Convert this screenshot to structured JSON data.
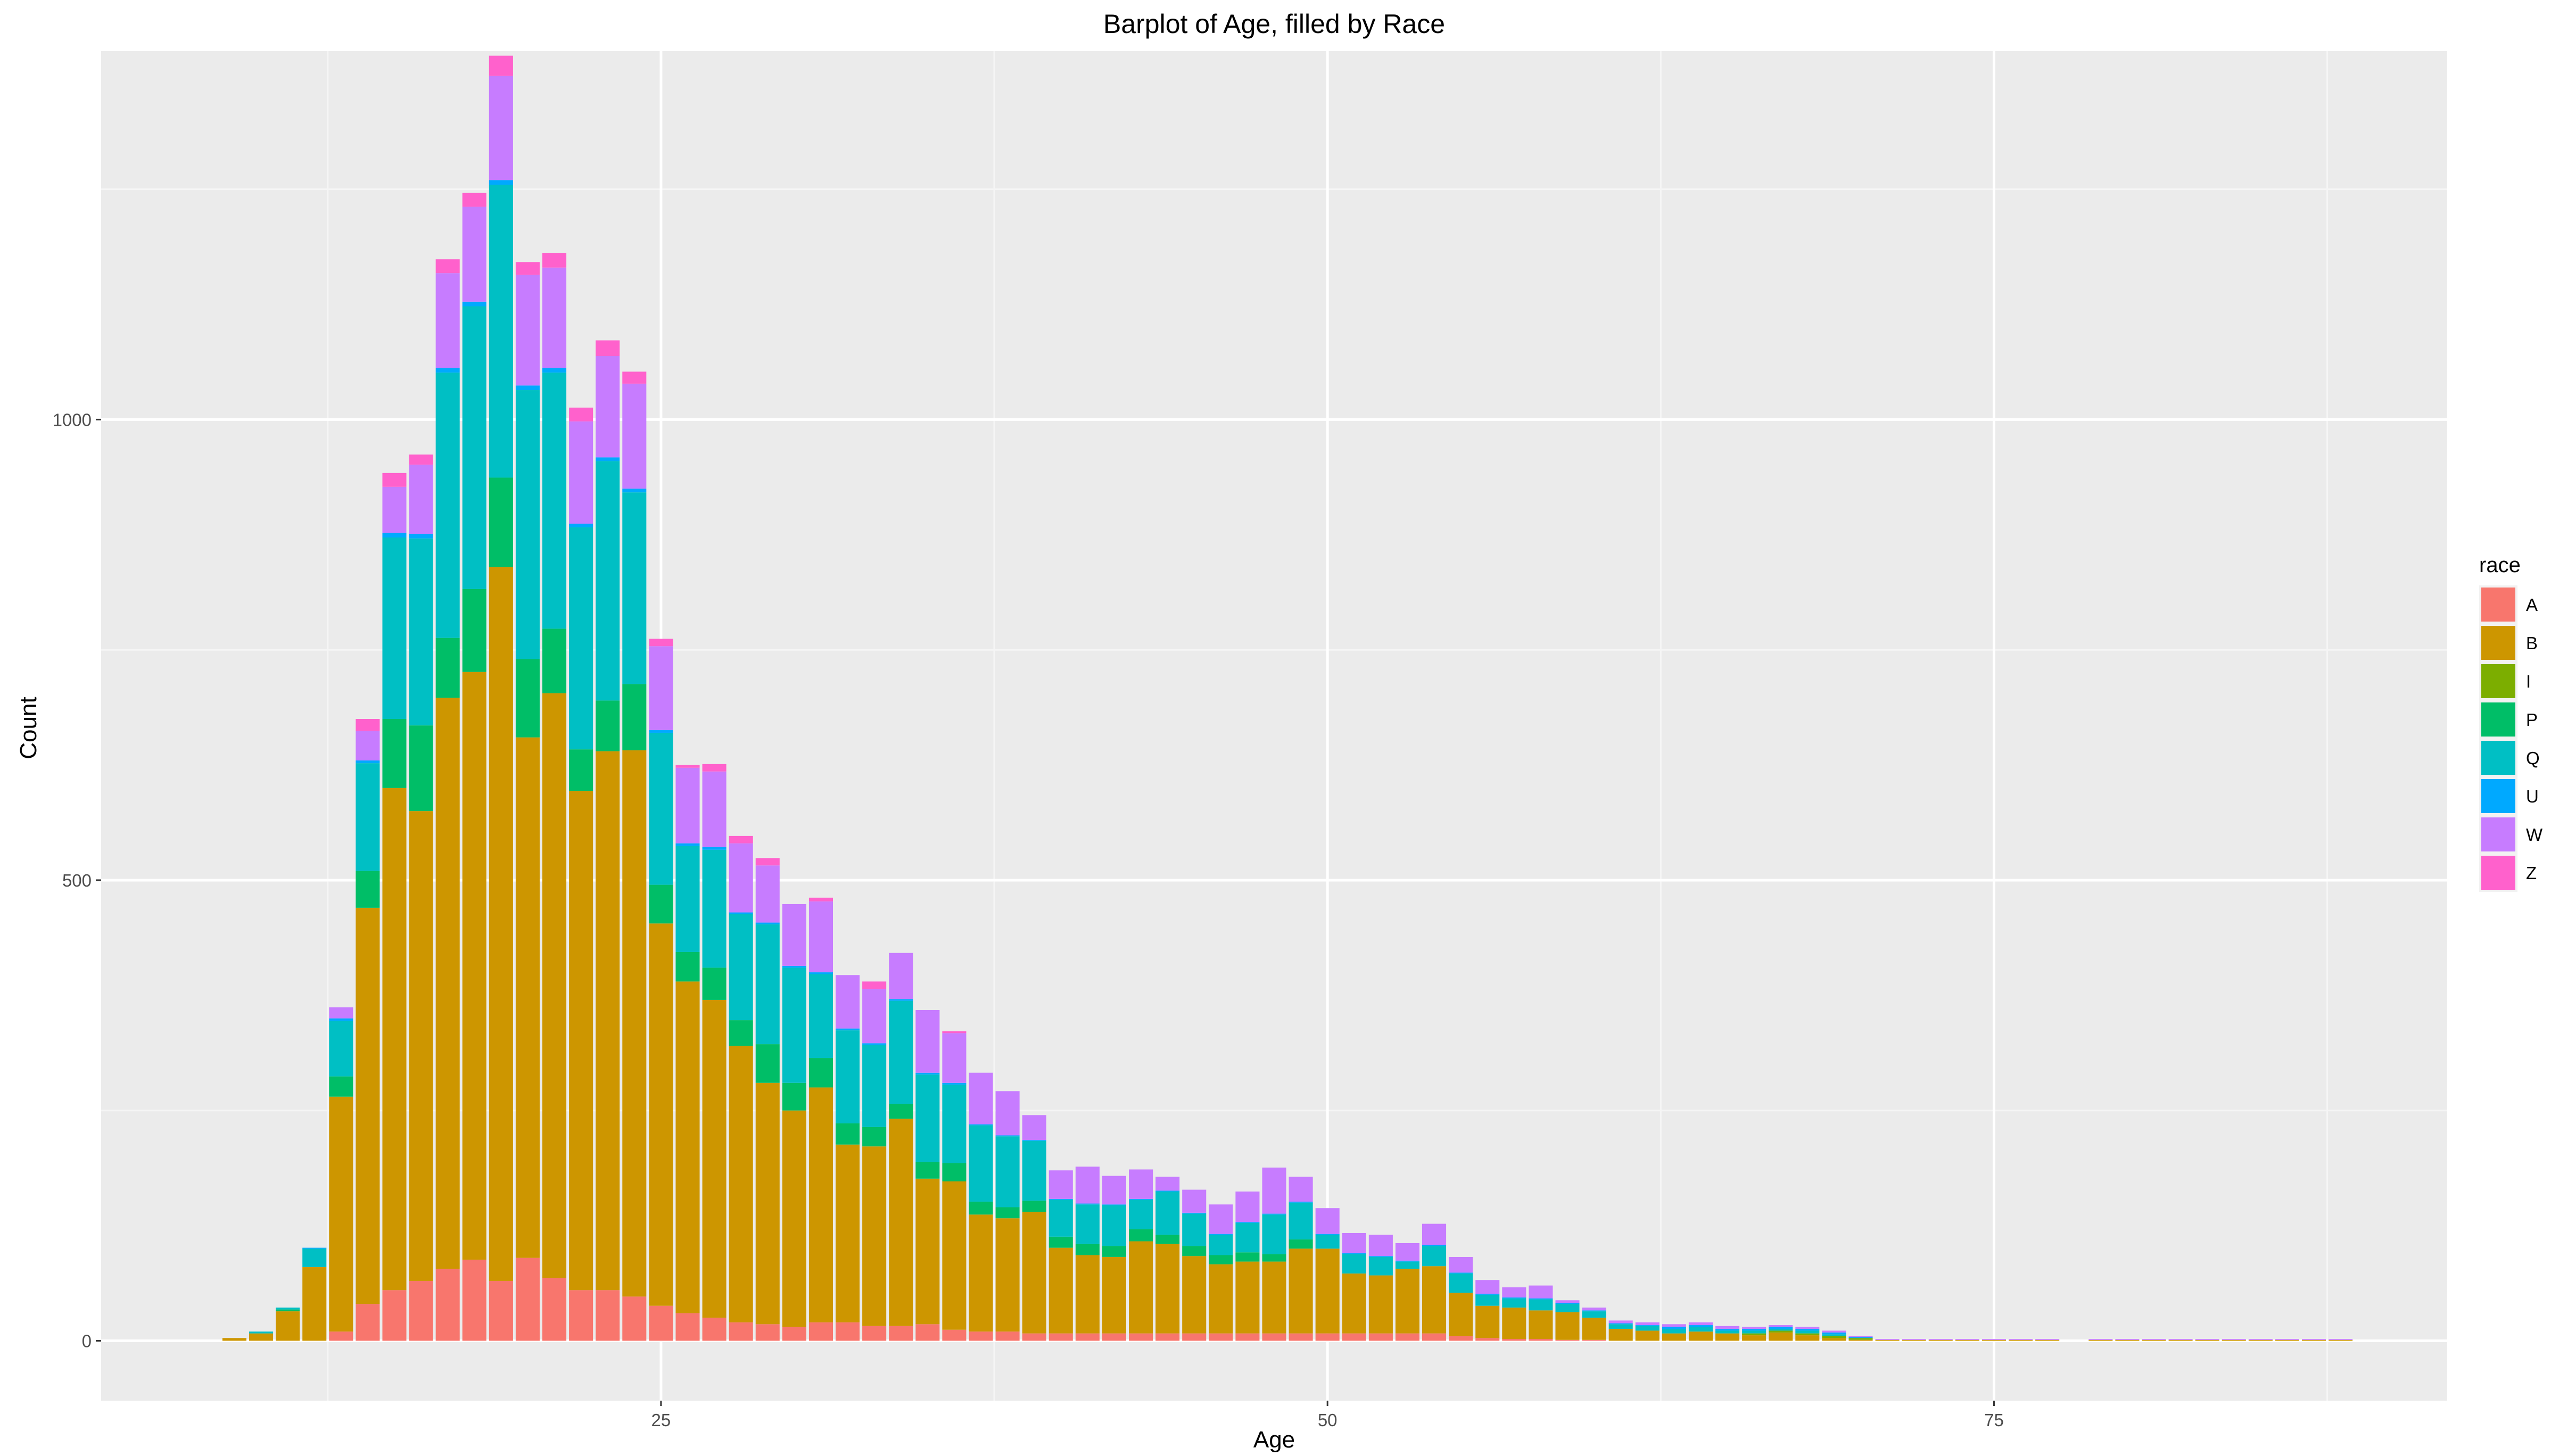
{
  "chart_data": {
    "type": "bar",
    "stacked": true,
    "title": "Barplot of Age, filled by Race",
    "xlabel": "Age",
    "ylabel": "Count",
    "xlim": [
      4.0,
      92.0
    ],
    "ylim": [
      -65,
      1400
    ],
    "x_ticks": [
      25,
      50,
      75
    ],
    "x_tick_labels": [
      "25",
      "50",
      "75"
    ],
    "y_ticks": [
      0,
      500,
      1000
    ],
    "y_tick_labels": [
      "0",
      "500",
      "1000"
    ],
    "grid": true,
    "legend": {
      "title": "race",
      "position": "right"
    },
    "series_colors": {
      "A": "#F8766D",
      "B": "#CD9600",
      "I": "#7CAE00",
      "P": "#00BE67",
      "Q": "#00BFC4",
      "U": "#00A9FF",
      "W": "#C77CFF",
      "Z": "#FF61CC"
    },
    "categories": [
      9,
      10,
      11,
      12,
      13,
      14,
      15,
      16,
      17,
      18,
      19,
      20,
      21,
      22,
      23,
      24,
      25,
      26,
      27,
      28,
      29,
      30,
      31,
      32,
      33,
      34,
      35,
      36,
      37,
      38,
      39,
      40,
      41,
      42,
      43,
      44,
      45,
      46,
      47,
      48,
      49,
      50,
      51,
      52,
      53,
      54,
      55,
      56,
      57,
      58,
      59,
      60,
      61,
      62,
      63,
      64,
      65,
      66,
      67,
      68,
      69,
      70,
      71,
      72,
      73,
      74,
      75,
      76,
      77,
      79,
      80,
      81,
      82,
      83,
      84,
      85,
      86,
      87,
      88
    ],
    "series": [
      {
        "name": "A",
        "values": [
          0,
          0,
          0,
          0,
          10,
          40,
          55,
          65,
          78,
          88,
          65,
          90,
          68,
          55,
          55,
          48,
          38,
          30,
          25,
          20,
          18,
          15,
          20,
          20,
          16,
          16,
          18,
          12,
          10,
          10,
          8,
          8,
          8,
          8,
          8,
          8,
          8,
          8,
          8,
          8,
          8,
          8,
          8,
          8,
          8,
          8,
          5,
          3,
          2,
          2,
          1,
          1,
          0,
          0,
          0,
          0,
          0,
          0,
          0,
          0,
          0,
          0,
          0,
          0,
          0,
          0,
          0,
          0,
          0,
          0,
          0,
          0,
          0,
          0,
          0,
          0,
          0,
          0,
          0
        ]
      },
      {
        "name": "B",
        "values": [
          3,
          8,
          32,
          80,
          255,
          430,
          545,
          510,
          620,
          638,
          775,
          565,
          635,
          542,
          585,
          593,
          415,
          360,
          345,
          300,
          262,
          235,
          255,
          193,
          195,
          225,
          158,
          161,
          127,
          123,
          132,
          93,
          85,
          83,
          100,
          97,
          84,
          75,
          78,
          78,
          92,
          92,
          65,
          63,
          70,
          73,
          47,
          35,
          34,
          31,
          30,
          24,
          13,
          11,
          8,
          10,
          8,
          6,
          9,
          6,
          3,
          1,
          1,
          1,
          1,
          1,
          1,
          1,
          1,
          1,
          1,
          1,
          1,
          1,
          1,
          1,
          1,
          1,
          1
        ]
      },
      {
        "name": "I",
        "values": [
          0,
          0,
          0,
          0,
          0,
          0,
          0,
          0,
          0,
          0,
          0,
          0,
          0,
          0,
          0,
          0,
          0,
          0,
          0,
          0,
          0,
          0,
          0,
          0,
          0,
          0,
          0,
          0,
          0,
          0,
          0,
          0,
          0,
          0,
          0,
          0,
          0,
          0,
          0,
          0,
          0,
          0,
          0,
          0,
          0,
          0,
          0,
          0,
          0,
          0,
          0,
          0,
          0,
          0,
          0,
          0,
          0,
          2,
          2,
          2,
          2,
          2,
          0,
          0,
          0,
          0,
          0,
          0,
          0,
          0,
          0,
          0,
          0,
          0,
          0,
          0,
          0,
          0,
          0
        ]
      },
      {
        "name": "P",
        "values": [
          0,
          0,
          2,
          0,
          22,
          40,
          75,
          93,
          65,
          90,
          97,
          85,
          70,
          45,
          55,
          72,
          42,
          32,
          35,
          28,
          42,
          30,
          32,
          23,
          21,
          16,
          18,
          20,
          14,
          12,
          12,
          12,
          12,
          12,
          13,
          10,
          11,
          10,
          10,
          8,
          10,
          0,
          0,
          0,
          0,
          0,
          0,
          0,
          0,
          0,
          0,
          0,
          0,
          0,
          0,
          0,
          0,
          0,
          0,
          0,
          0,
          0,
          0,
          0,
          0,
          0,
          0,
          0,
          0,
          0,
          0,
          0,
          0,
          0,
          0,
          0,
          0,
          0,
          0
        ]
      },
      {
        "name": "Q",
        "values": [
          0,
          2,
          2,
          20,
          60,
          117,
          197,
          203,
          288,
          307,
          318,
          292,
          278,
          241,
          260,
          208,
          165,
          115,
          128,
          115,
          130,
          125,
          91,
          101,
          89,
          112,
          95,
          85,
          83,
          77,
          65,
          40,
          43,
          44,
          32,
          47,
          35,
          22,
          32,
          43,
          40,
          15,
          21,
          20,
          8,
          22,
          21,
          12,
          10,
          12,
          9,
          7,
          5,
          5,
          5,
          5,
          3,
          3,
          2,
          3,
          2,
          0,
          0,
          0,
          0,
          0,
          0,
          0,
          0,
          0,
          0,
          0,
          0,
          0,
          0,
          0,
          0,
          0,
          0
        ]
      },
      {
        "name": "U",
        "values": [
          0,
          0,
          0,
          1,
          3,
          3,
          5,
          5,
          5,
          5,
          5,
          5,
          5,
          4,
          4,
          4,
          3,
          3,
          3,
          2,
          2,
          2,
          2,
          2,
          2,
          2,
          2,
          2,
          1,
          1,
          1,
          1,
          1,
          1,
          1,
          1,
          1,
          1,
          1,
          1,
          1,
          1,
          1,
          1,
          1,
          1,
          1,
          1,
          1,
          1,
          1,
          1,
          1,
          1,
          2,
          2,
          2,
          2,
          2,
          2,
          2,
          1,
          0,
          0,
          0,
          0,
          0,
          0,
          0,
          0,
          0,
          0,
          0,
          0,
          0,
          0,
          0,
          0,
          0
        ]
      },
      {
        "name": "W",
        "values": [
          0,
          0,
          0,
          0,
          12,
          32,
          50,
          75,
          103,
          103,
          113,
          120,
          109,
          111,
          110,
          114,
          91,
          82,
          82,
          75,
          62,
          67,
          77,
          58,
          59,
          50,
          68,
          54,
          56,
          48,
          27,
          31,
          40,
          31,
          32,
          15,
          25,
          32,
          33,
          50,
          27,
          28,
          22,
          23,
          19,
          23,
          17,
          15,
          11,
          14,
          3,
          3,
          3,
          3,
          3,
          3,
          3,
          2,
          2,
          2,
          2,
          1,
          1,
          1,
          1,
          1,
          1,
          1,
          1,
          1,
          1,
          1,
          1,
          1,
          1,
          1,
          1,
          1,
          1
        ]
      },
      {
        "name": "Z",
        "values": [
          0,
          0,
          0,
          0,
          0,
          13,
          15,
          11,
          15,
          15,
          22,
          14,
          16,
          15,
          17,
          13,
          8,
          3,
          8,
          8,
          8,
          0,
          4,
          0,
          8,
          0,
          0,
          2,
          0,
          0,
          0,
          0,
          0,
          0,
          0,
          0,
          0,
          0,
          0,
          0,
          0,
          0,
          0,
          0,
          0,
          0,
          0,
          0,
          0,
          0,
          0,
          0,
          0,
          0,
          0,
          0,
          0,
          0,
          0,
          0,
          0,
          0,
          0,
          0,
          0,
          0,
          0,
          0,
          0,
          0,
          0,
          0,
          0,
          0,
          0,
          0,
          0,
          0,
          0
        ]
      }
    ]
  }
}
